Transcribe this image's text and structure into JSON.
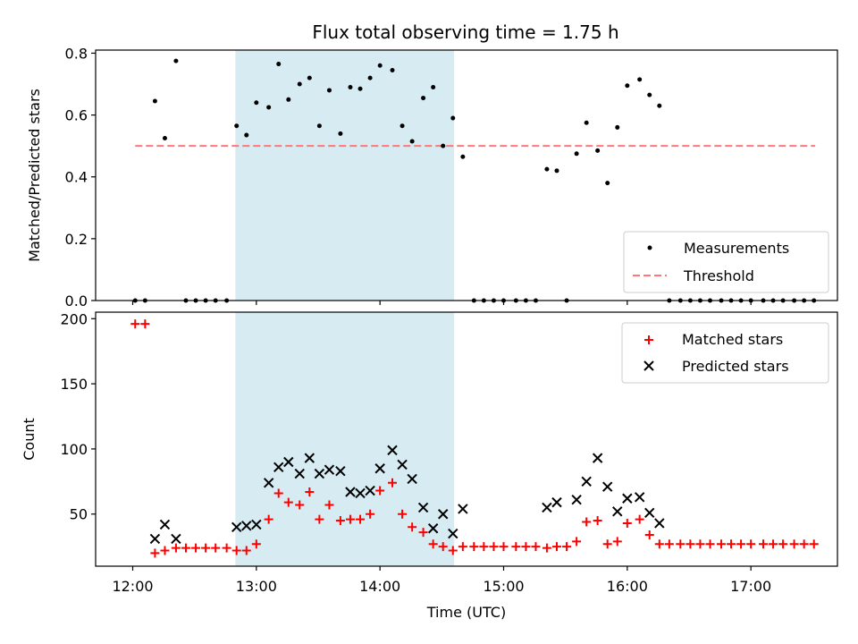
{
  "chart_data": [
    {
      "type": "scatter",
      "title": "Flux total observing time = 1.75 h",
      "xlabel": "",
      "ylabel": "Matched/Predicted stars",
      "ylim": [
        0,
        0.81
      ],
      "yticks": [
        0.0,
        0.2,
        0.4,
        0.6,
        0.8
      ],
      "ytick_labels": [
        "0.0",
        "0.2",
        "0.4",
        "0.6",
        "0.8"
      ],
      "xlim_hours": [
        11.7,
        17.7
      ],
      "shaded_region_hours": [
        12.83,
        14.6
      ],
      "shade_color": "#add8e6",
      "legend_position": "lower-right",
      "threshold": {
        "name": "Threshold",
        "value": 0.5,
        "x_from": 12.02,
        "x_to": 17.52,
        "color": "#ff7777"
      },
      "series": [
        {
          "name": "Measurements",
          "color": "#000000",
          "x": [
            12.02,
            12.1,
            12.18,
            12.26,
            12.35,
            12.43,
            12.51,
            12.59,
            12.67,
            12.76,
            12.84,
            12.92,
            13.0,
            13.1,
            13.18,
            13.26,
            13.35,
            13.43,
            13.51,
            13.59,
            13.68,
            13.76,
            13.84,
            13.92,
            14.0,
            14.1,
            14.18,
            14.26,
            14.35,
            14.43,
            14.51,
            14.59,
            14.67,
            14.76,
            14.84,
            14.92,
            15.0,
            15.1,
            15.18,
            15.26,
            15.35,
            15.43,
            15.51,
            15.59,
            15.67,
            15.76,
            15.84,
            15.92,
            16.0,
            16.1,
            16.18,
            16.26,
            16.34,
            16.43,
            16.51,
            16.59,
            16.67,
            16.76,
            16.84,
            16.92,
            17.0,
            17.1,
            17.18,
            17.26,
            17.35,
            17.43,
            17.51
          ],
          "y": [
            0,
            0,
            0.645,
            0.525,
            0.775,
            0,
            0,
            0,
            0,
            0,
            0.565,
            0.535,
            0.64,
            0.625,
            0.765,
            0.65,
            0.7,
            0.72,
            0.565,
            0.68,
            0.54,
            0.69,
            0.685,
            0.72,
            0.76,
            0.745,
            0.565,
            0.515,
            0.655,
            0.69,
            0.5,
            0.59,
            0.465,
            0,
            0,
            0,
            0,
            0,
            0,
            0,
            0.425,
            0.42,
            0,
            0.475,
            0.575,
            0.485,
            0.38,
            0.56,
            0.695,
            0.715,
            0.665,
            0.63,
            0,
            0,
            0,
            0,
            0,
            0,
            0,
            0,
            0,
            0,
            0,
            0,
            0,
            0,
            0
          ]
        }
      ]
    },
    {
      "type": "scatter",
      "title": "",
      "xlabel": "Time (UTC)",
      "ylabel": "Count",
      "ylim": [
        10,
        205
      ],
      "yticks": [
        50,
        100,
        150,
        200
      ],
      "ytick_labels": [
        "50",
        "100",
        "150",
        "200"
      ],
      "xlim_hours": [
        11.7,
        17.7
      ],
      "xticks_hours": [
        12,
        13,
        14,
        15,
        16,
        17
      ],
      "xtick_labels": [
        "12:00",
        "13:00",
        "14:00",
        "15:00",
        "16:00",
        "17:00"
      ],
      "shaded_region_hours": [
        12.83,
        14.6
      ],
      "shade_color": "#add8e6",
      "legend_position": "upper-right",
      "series": [
        {
          "name": "Matched stars",
          "color": "#ff0000",
          "marker": "plus",
          "x": [
            12.02,
            12.1,
            12.18,
            12.26,
            12.35,
            12.43,
            12.51,
            12.59,
            12.67,
            12.76,
            12.84,
            12.92,
            13.0,
            13.1,
            13.18,
            13.26,
            13.35,
            13.43,
            13.51,
            13.59,
            13.68,
            13.76,
            13.84,
            13.92,
            14.0,
            14.1,
            14.18,
            14.26,
            14.35,
            14.43,
            14.51,
            14.59,
            14.67,
            14.76,
            14.84,
            14.92,
            15.0,
            15.1,
            15.18,
            15.26,
            15.35,
            15.43,
            15.51,
            15.59,
            15.67,
            15.76,
            15.84,
            15.92,
            16.0,
            16.1,
            16.18,
            16.26,
            16.34,
            16.43,
            16.51,
            16.59,
            16.67,
            16.76,
            16.84,
            16.92,
            17.0,
            17.1,
            17.18,
            17.26,
            17.35,
            17.43,
            17.51
          ],
          "y": [
            196,
            196,
            20,
            22,
            24,
            24,
            24,
            24,
            24,
            24,
            22,
            22,
            27,
            46,
            66,
            59,
            57,
            67,
            46,
            57,
            45,
            46,
            46,
            50,
            68,
            74,
            50,
            40,
            36,
            27,
            25,
            22,
            25,
            25,
            25,
            25,
            25,
            25,
            25,
            25,
            24,
            25,
            25,
            29,
            44,
            45,
            27,
            29,
            43,
            46,
            34,
            27,
            27,
            27,
            27,
            27,
            27,
            27,
            27,
            27,
            27,
            27,
            27,
            27,
            27,
            27,
            27
          ]
        },
        {
          "name": "Predicted stars",
          "color": "#000000",
          "marker": "x",
          "x": [
            12.18,
            12.26,
            12.35,
            12.84,
            12.92,
            13.0,
            13.1,
            13.18,
            13.26,
            13.35,
            13.43,
            13.51,
            13.59,
            13.68,
            13.76,
            13.84,
            13.92,
            14.0,
            14.1,
            14.18,
            14.26,
            14.35,
            14.43,
            14.51,
            14.59,
            14.67,
            15.35,
            15.43,
            15.59,
            15.67,
            15.76,
            15.84,
            15.92,
            16.0,
            16.1,
            16.18,
            16.26
          ],
          "y": [
            31,
            42,
            31,
            40,
            41,
            42,
            74,
            86,
            90,
            81,
            93,
            81,
            84,
            83,
            67,
            66,
            68,
            85,
            99,
            88,
            77,
            55,
            39,
            50,
            35,
            54,
            55,
            59,
            61,
            75,
            93,
            71,
            52,
            62,
            63,
            51,
            43
          ]
        }
      ]
    }
  ]
}
